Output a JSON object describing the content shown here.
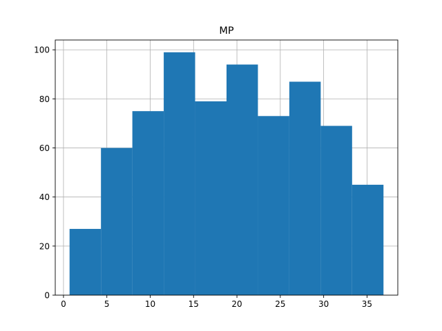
{
  "chart_data": {
    "type": "bar",
    "title": "MP",
    "xlabel": "",
    "ylabel": "",
    "bins": [
      {
        "x0": 0.7,
        "x1": 4.32,
        "value": 27
      },
      {
        "x0": 4.32,
        "x1": 7.94,
        "value": 60
      },
      {
        "x0": 7.94,
        "x1": 11.56,
        "value": 75
      },
      {
        "x0": 11.56,
        "x1": 15.18,
        "value": 99
      },
      {
        "x0": 15.18,
        "x1": 18.8,
        "value": 79
      },
      {
        "x0": 18.8,
        "x1": 22.42,
        "value": 94
      },
      {
        "x0": 22.42,
        "x1": 26.04,
        "value": 73
      },
      {
        "x0": 26.04,
        "x1": 29.66,
        "value": 87
      },
      {
        "x0": 29.66,
        "x1": 33.28,
        "value": 69
      },
      {
        "x0": 33.28,
        "x1": 36.9,
        "value": 45
      }
    ],
    "xlim": [
      -0.95,
      38.55
    ],
    "ylim": [
      0,
      104
    ],
    "xticks": [
      0,
      5,
      10,
      15,
      20,
      25,
      30,
      35
    ],
    "yticks": [
      0,
      20,
      40,
      60,
      80,
      100
    ],
    "grid": true,
    "bar_color": "#1f77b4"
  }
}
